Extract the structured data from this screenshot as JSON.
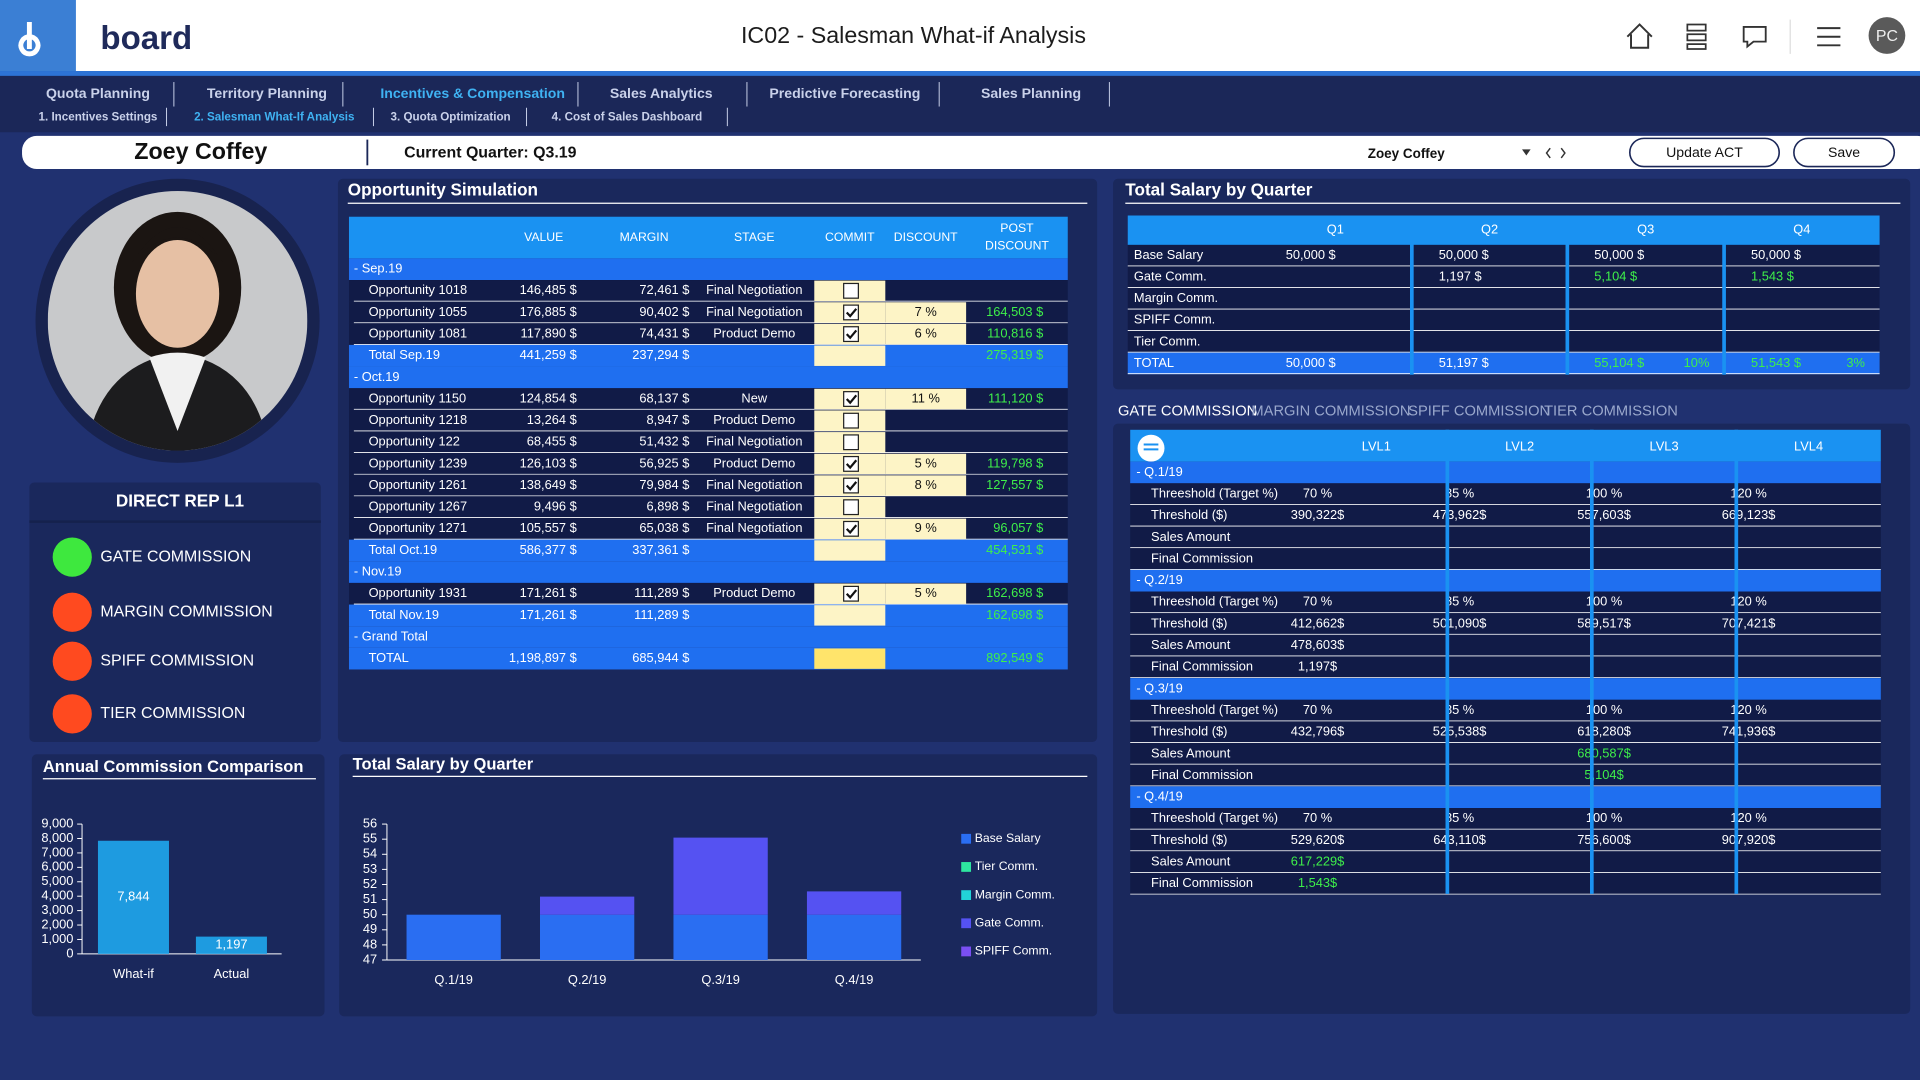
{
  "header": {
    "brand": "board",
    "title": "IC02 - Salesman What-if Analysis",
    "avatar": "PC"
  },
  "nav": {
    "tabs": [
      "Quota Planning",
      "Territory Planning",
      "Incentives & Compensation",
      "Sales Analytics",
      "Predictive Forecasting",
      "Sales Planning"
    ],
    "active_tab": 2,
    "subtabs": [
      "1. Incentives Settings",
      "2. Salesman What-If Analysis",
      "3. Quota Optimization",
      "4. Cost of Sales Dashboard"
    ],
    "active_subtab": 1
  },
  "toolbar": {
    "salesman": "Zoey Coffey",
    "quarter": "Current Quarter: Q3.19",
    "selector": "Zoey Coffey",
    "buttons": [
      "Update ACT",
      "Save"
    ]
  },
  "rep_panel": {
    "title": "DIRECT REP L1",
    "items": [
      {
        "label": "GATE COMMISSION",
        "color": "#3ee83e"
      },
      {
        "label": "MARGIN COMMISSION",
        "color": "#ff4a1f"
      },
      {
        "label": "SPIFF COMMISSION",
        "color": "#ff4a1f"
      },
      {
        "label": "TIER COMMISSION",
        "color": "#ff4a1f"
      }
    ]
  },
  "opportunity": {
    "title": "Opportunity Simulation",
    "headers": [
      null,
      "VALUE",
      "MARGIN",
      "STAGE",
      "COMMIT",
      "DISCOUNT",
      [
        "POST",
        "DISCOUNT"
      ]
    ],
    "rows": [
      {
        "kind": "group",
        "label": "- Sep.19"
      },
      {
        "kind": "item",
        "label": "Opportunity 1018",
        "value": "146,485 $",
        "margin": "72,461 $",
        "stage": "Final Negotiation",
        "commit": false
      },
      {
        "kind": "item",
        "label": "Opportunity 1055",
        "value": "176,885 $",
        "margin": "90,402 $",
        "stage": "Final Negotiation",
        "commit": true,
        "discount": "7 %",
        "post": "164,503 $"
      },
      {
        "kind": "item",
        "label": "Opportunity 1081",
        "value": "117,890 $",
        "margin": "74,431 $",
        "stage": "Product Demo",
        "commit": true,
        "discount": "6 %",
        "post": "110,816 $"
      },
      {
        "kind": "total",
        "label": "Total Sep.19",
        "value": "441,259 $",
        "margin": "237,294 $",
        "post": "275,319 $"
      },
      {
        "kind": "group",
        "label": "- Oct.19"
      },
      {
        "kind": "item",
        "label": "Opportunity 1150",
        "value": "124,854 $",
        "margin": "68,137 $",
        "stage": "New",
        "commit": true,
        "discount": "11 %",
        "post": "111,120 $"
      },
      {
        "kind": "item",
        "label": "Opportunity 1218",
        "value": "13,264 $",
        "margin": "8,947 $",
        "stage": "Product Demo",
        "commit": false
      },
      {
        "kind": "item",
        "label": "Opportunity 122",
        "value": "68,455 $",
        "margin": "51,432 $",
        "stage": "Final Negotiation",
        "commit": false
      },
      {
        "kind": "item",
        "label": "Opportunity 1239",
        "value": "126,103 $",
        "margin": "56,925 $",
        "stage": "Product Demo",
        "commit": true,
        "discount": "5 %",
        "post": "119,798 $"
      },
      {
        "kind": "item",
        "label": "Opportunity 1261",
        "value": "138,649 $",
        "margin": "79,984 $",
        "stage": "Final Negotiation",
        "commit": true,
        "discount": "8 %",
        "post": "127,557 $"
      },
      {
        "kind": "item",
        "label": "Opportunity 1267",
        "value": "9,496 $",
        "margin": "6,898 $",
        "stage": "Final Negotiation",
        "commit": false
      },
      {
        "kind": "item",
        "label": "Opportunity 1271",
        "value": "105,557 $",
        "margin": "65,038 $",
        "stage": "Final Negotiation",
        "commit": true,
        "discount": "9 %",
        "post": "96,057 $"
      },
      {
        "kind": "total",
        "label": "Total Oct.19",
        "value": "586,377 $",
        "margin": "337,361 $",
        "post": "454,531 $"
      },
      {
        "kind": "group",
        "label": "- Nov.19"
      },
      {
        "kind": "item",
        "label": "Opportunity 1931",
        "value": "171,261 $",
        "margin": "111,289 $",
        "stage": "Product Demo",
        "commit": true,
        "discount": "5 %",
        "post": "162,698 $"
      },
      {
        "kind": "total",
        "label": "Total Nov.19",
        "value": "171,261 $",
        "margin": "111,289 $",
        "post": "162,698 $"
      },
      {
        "kind": "group",
        "label": "- Grand Total"
      },
      {
        "kind": "grand",
        "label": "TOTAL",
        "value": "1,198,897 $",
        "margin": "685,944 $",
        "post": "892,549 $"
      }
    ]
  },
  "salary_table": {
    "title": "Total Salary by Quarter",
    "headers": [
      "Q1",
      "Q2",
      "Q3",
      "Q4"
    ],
    "rows": [
      {
        "label": "Base Salary",
        "cells": [
          "50,000 $",
          "50,000 $",
          "50,000 $",
          "50,000 $"
        ]
      },
      {
        "label": "Gate Comm.",
        "cells": [
          null,
          "1,197 $",
          {
            "text": "5,104 $",
            "color": "#3ef04a"
          },
          {
            "text": "1,543 $",
            "color": "#3ef04a"
          }
        ]
      },
      {
        "label": "Margin Comm.",
        "cells": [
          null,
          null,
          null,
          null
        ]
      },
      {
        "label": "SPIFF Comm.",
        "cells": [
          null,
          null,
          null,
          null
        ]
      },
      {
        "label": "Tier Comm.",
        "cells": [
          null,
          null,
          null,
          null
        ]
      },
      {
        "label": "TOTAL",
        "total": true,
        "cells": [
          "50,000 $",
          "51,197 $",
          {
            "text": "55,104 $",
            "pct": "10%",
            "color": "#3ef04a"
          },
          {
            "text": "51,543 $",
            "pct": "3%",
            "color": "#3ef04a"
          }
        ]
      }
    ]
  },
  "commission": {
    "tabs": [
      "GATE COMMISSION",
      "MARGIN COMMISSION",
      "SPIFF COMMISSION",
      "TIER COMMISSION"
    ],
    "active_tab": 0,
    "headers": [
      "LVL1",
      "LVL2",
      "LVL3",
      "LVL4"
    ],
    "groups": [
      {
        "label": "- Q.1/19",
        "rows": [
          {
            "label": "Threeshold (Target %)",
            "cells": [
              "70 %",
              "85 %",
              "100 %",
              "120 %"
            ]
          },
          {
            "label": "Threshold ($)",
            "cells": [
              "390,322$",
              "473,962$",
              "557,603$",
              "669,123$"
            ]
          },
          {
            "label": "Sales Amount",
            "cells": [
              null,
              null,
              null,
              null
            ]
          },
          {
            "label": "Final Commission",
            "cells": [
              null,
              null,
              null,
              null
            ]
          }
        ]
      },
      {
        "label": "- Q.2/19",
        "rows": [
          {
            "label": "Threeshold (Target %)",
            "cells": [
              "70 %",
              "85 %",
              "100 %",
              "120 %"
            ]
          },
          {
            "label": "Threshold ($)",
            "cells": [
              "412,662$",
              "501,090$",
              "589,517$",
              "707,421$"
            ]
          },
          {
            "label": "Sales Amount",
            "cells": [
              "478,603$",
              null,
              null,
              null
            ]
          },
          {
            "label": "Final Commission",
            "cells": [
              "1,197$",
              null,
              null,
              null
            ]
          }
        ]
      },
      {
        "label": "- Q.3/19",
        "rows": [
          {
            "label": "Threeshold (Target %)",
            "cells": [
              "70 %",
              "85 %",
              "100 %",
              "120 %"
            ]
          },
          {
            "label": "Threshold ($)",
            "cells": [
              "432,796$",
              "525,538$",
              "618,280$",
              "741,936$"
            ]
          },
          {
            "label": "Sales Amount",
            "cells": [
              null,
              null,
              {
                "text": "680,587$",
                "color": "#3ef04a"
              },
              null
            ]
          },
          {
            "label": "Final Commission",
            "cells": [
              null,
              null,
              {
                "text": "5,104$",
                "color": "#3ef04a"
              },
              null
            ]
          }
        ]
      },
      {
        "label": "- Q.4/19",
        "rows": [
          {
            "label": "Threeshold (Target %)",
            "cells": [
              "70 %",
              "85 %",
              "100 %",
              "120 %"
            ]
          },
          {
            "label": "Threshold ($)",
            "cells": [
              "529,620$",
              "643,110$",
              "756,600$",
              "907,920$"
            ]
          },
          {
            "label": "Sales Amount",
            "cells": [
              {
                "text": "617,229$",
                "color": "#3ef04a"
              },
              null,
              null,
              null
            ]
          },
          {
            "label": "Final Commission",
            "cells": [
              {
                "text": "1,543$",
                "color": "#3ef04a"
              },
              null,
              null,
              null
            ]
          }
        ]
      }
    ]
  },
  "chart_data": [
    {
      "type": "bar",
      "title": "Annual Commission Comparison",
      "categories": [
        "What-if",
        "Actual"
      ],
      "values": [
        7844,
        1197
      ],
      "value_labels": [
        "7,844",
        "1,197"
      ],
      "color": "#1e9be0",
      "ylim": [
        0,
        9000
      ],
      "yticks": [
        0,
        {
          "value": 1000,
          "label": "1,000"
        },
        {
          "value": 2000,
          "label": "2,000"
        },
        {
          "value": 3000,
          "label": "3,000"
        },
        {
          "value": 4000,
          "label": "4,000"
        },
        {
          "value": 5000,
          "label": "5,000"
        },
        {
          "value": 6000,
          "label": "6,000"
        },
        {
          "value": 7000,
          "label": "7,000"
        },
        {
          "value": 8000,
          "label": "8,000"
        },
        {
          "value": 9000,
          "label": "9,000"
        }
      ]
    },
    {
      "type": "stacked_bar",
      "title": "Total Salary by Quarter",
      "categories": [
        "Q.1/19",
        "Q.2/19",
        "Q.3/19",
        "Q.4/19"
      ],
      "series": [
        {
          "name": "Base Salary",
          "color": "#2a6ef2",
          "values": [
            50,
            50,
            50,
            50
          ]
        },
        {
          "name": "Tier Comm.",
          "color": "#2ee6a0",
          "values": [
            null,
            null,
            null,
            null
          ]
        },
        {
          "name": "Margin Comm.",
          "color": "#22d3d8",
          "values": [
            null,
            null,
            null,
            null
          ]
        },
        {
          "name": "Gate Comm.",
          "color": "#5552f2",
          "values": [
            null,
            1.197,
            5.104,
            1.543
          ]
        },
        {
          "name": "SPIFF Comm.",
          "color": "#7a4ff2",
          "values": [
            null,
            null,
            null,
            null
          ]
        }
      ],
      "ylim": [
        47,
        56
      ],
      "yticks": [
        47,
        48,
        49,
        50,
        51,
        52,
        53,
        54,
        55,
        56
      ]
    }
  ]
}
